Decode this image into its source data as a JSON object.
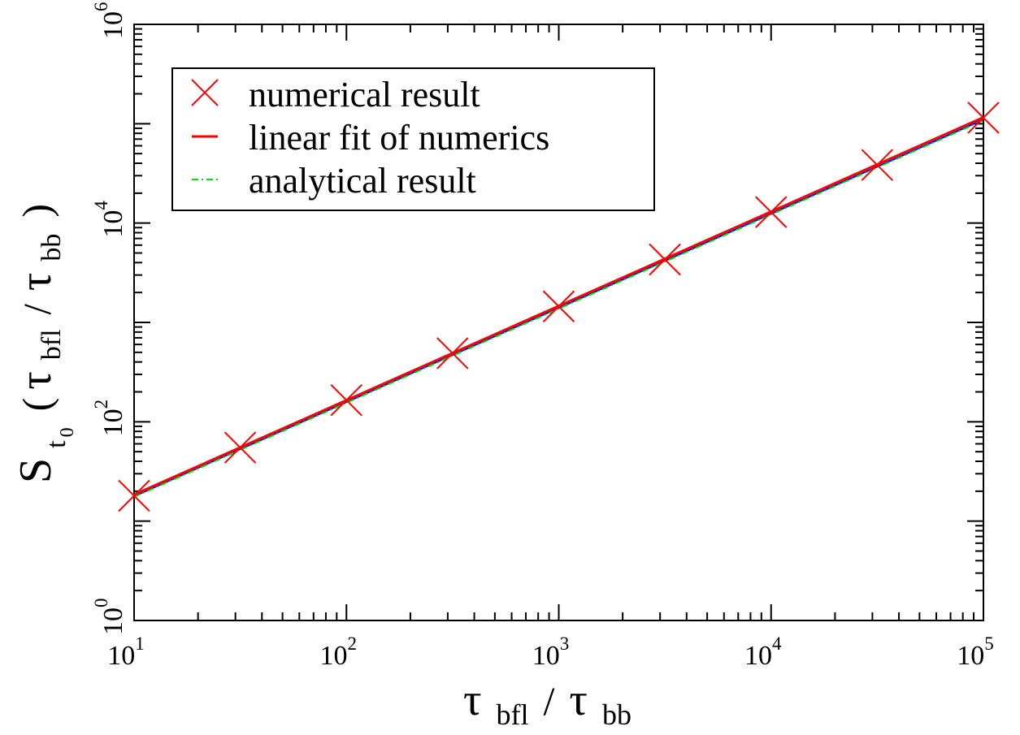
{
  "chart_data": {
    "type": "scatter",
    "x_scale": "log",
    "y_scale": "log",
    "xlim": [
      10,
      100000
    ],
    "ylim": [
      1,
      1000000
    ],
    "x_ticks": [
      {
        "base": "10",
        "exp": "1"
      },
      {
        "base": "10",
        "exp": "2"
      },
      {
        "base": "10",
        "exp": "3"
      },
      {
        "base": "10",
        "exp": "4"
      },
      {
        "base": "10",
        "exp": "5"
      }
    ],
    "y_ticks": [
      {
        "base": "10",
        "exp": "0"
      },
      {
        "base": "10",
        "exp": "2"
      },
      {
        "base": "10",
        "exp": "4"
      },
      {
        "base": "10",
        "exp": "6"
      }
    ],
    "xlabel": {
      "sym": "τ",
      "sub1": "bfl",
      "sep": "/",
      "sym2": "τ",
      "sub2": "bb"
    },
    "ylabel": {
      "main": "S",
      "sub": "t",
      "subsub": "0",
      "open": "(",
      "sym": "τ",
      "sub1": "bfl",
      "sep": "/",
      "sym2": "τ",
      "sub2": "bb",
      "close": ")"
    },
    "grid": false,
    "legend_position": "top-left",
    "series": [
      {
        "name": "numerical result",
        "kind": "markers",
        "marker": "x",
        "color": "#ff0000",
        "x": [
          10,
          31.6,
          100,
          316,
          1000,
          3160,
          10000,
          31600,
          100000
        ],
        "y": [
          18,
          55,
          165,
          490,
          1450,
          4300,
          12900,
          38500,
          115000
        ]
      },
      {
        "name": "linear fit of numerics",
        "kind": "line",
        "color": "#ff0000",
        "x": [
          10,
          100000
        ],
        "y": [
          18.5,
          116000
        ]
      },
      {
        "name": "analytical result",
        "kind": "dashdot",
        "color": "#00dd00",
        "x": [
          10,
          100000
        ],
        "y": [
          17.5,
          108000
        ]
      },
      {
        "name": "",
        "kind": "line",
        "color": "#0000ff",
        "x": [
          10,
          100000
        ],
        "y": [
          17.8,
          110000
        ]
      }
    ]
  }
}
